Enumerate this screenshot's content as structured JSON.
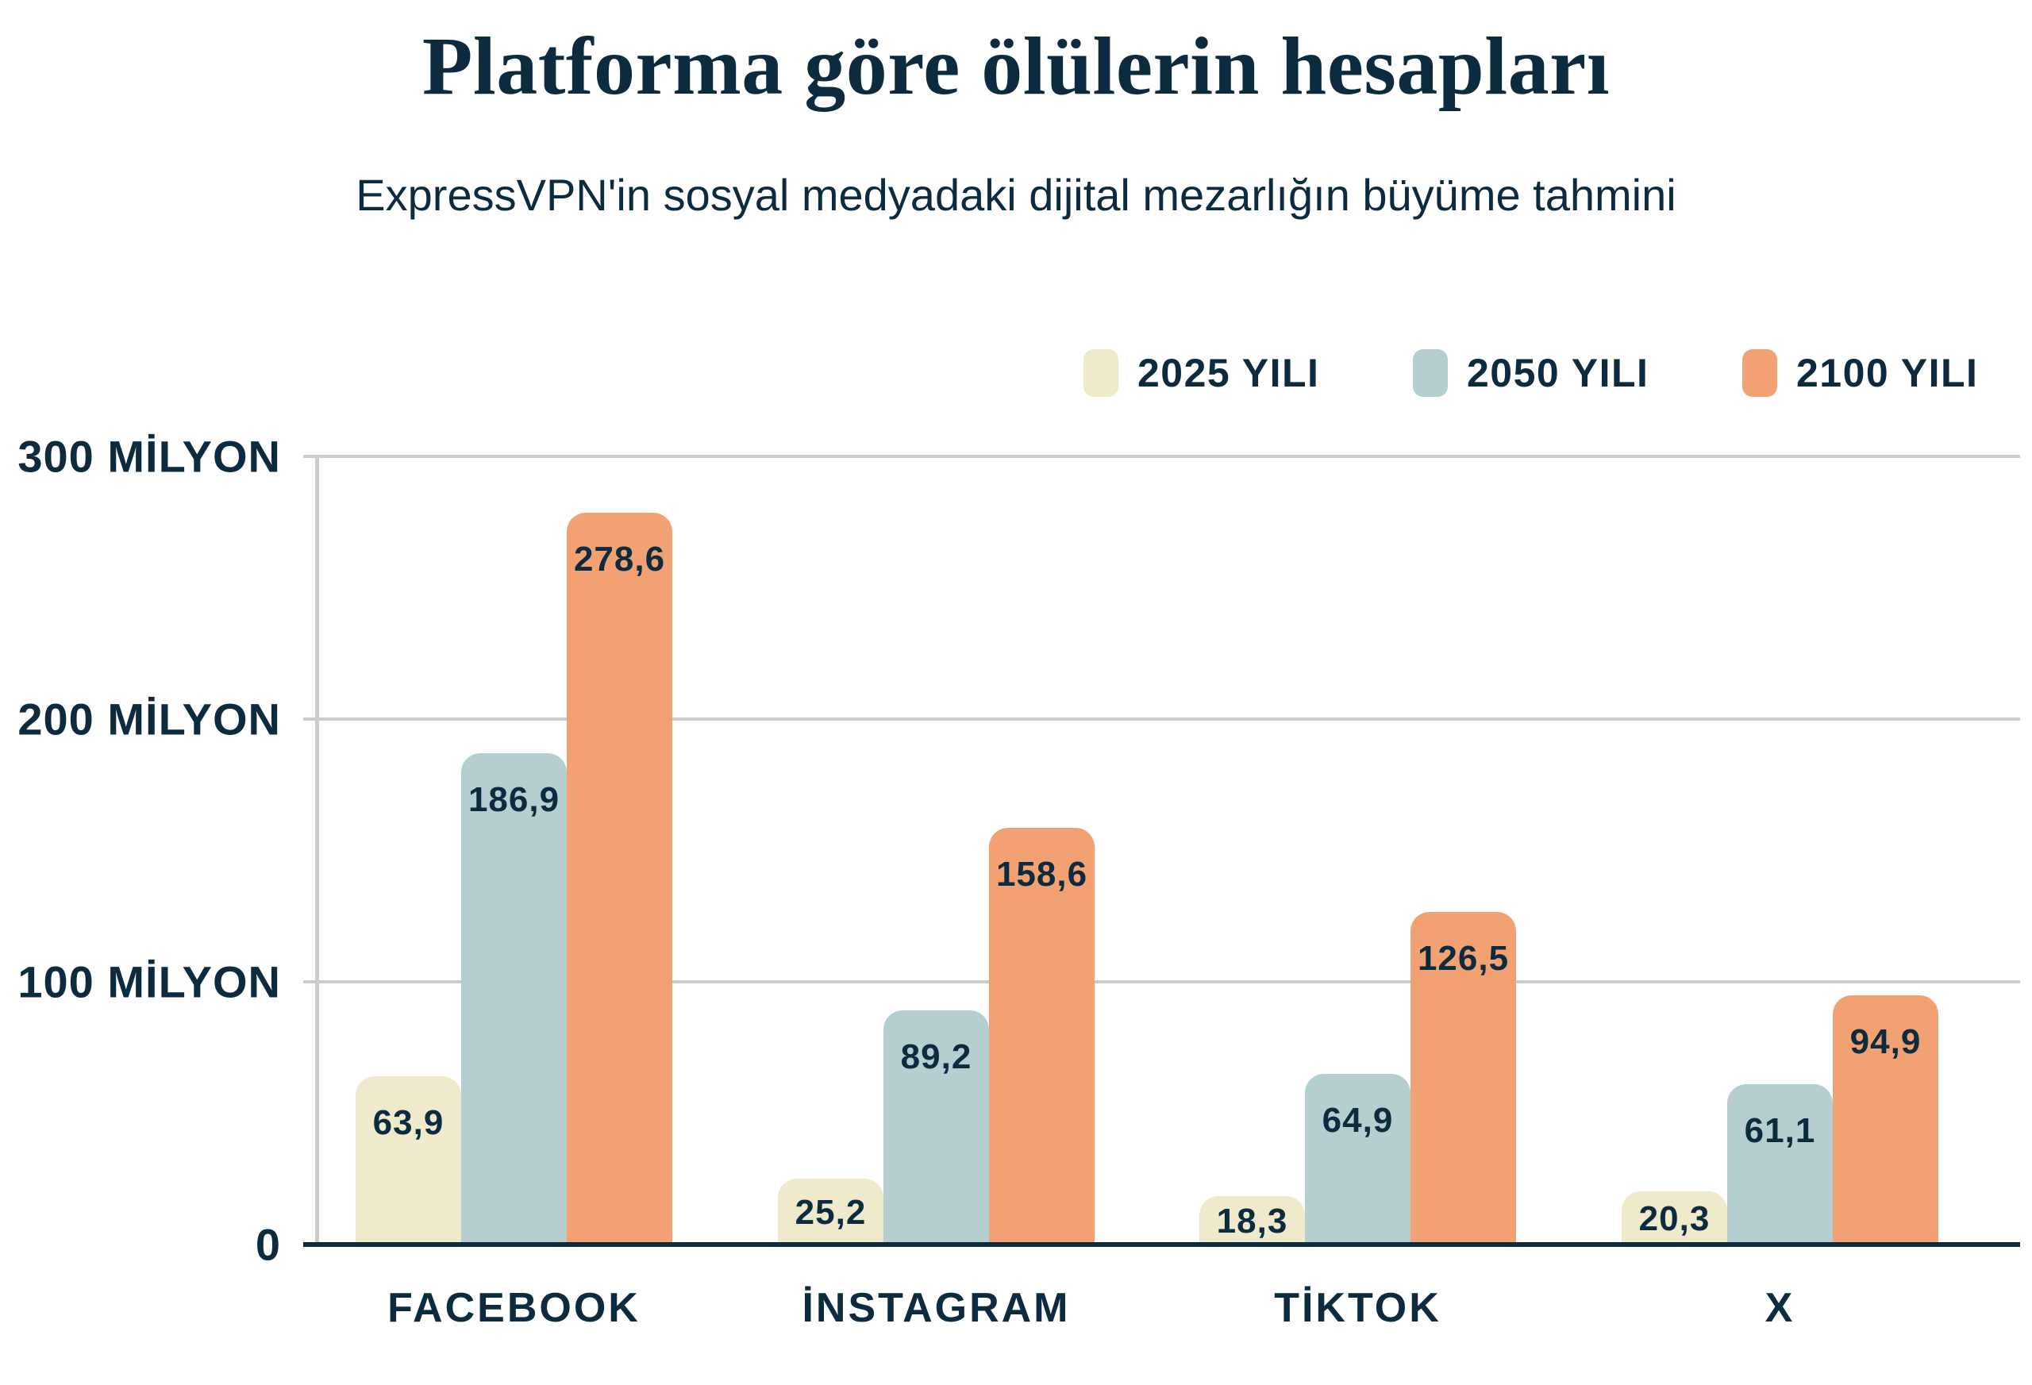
{
  "colors": {
    "text": "#0D2B3E",
    "grid": "#C9CDD1",
    "axis_baseline": "#0D2B3E",
    "background": "#FFFFFF",
    "series_2025": "#EFEACC",
    "series_2050": "#B5CFD1",
    "series_2100": "#F2A173"
  },
  "chart_data": {
    "type": "bar",
    "title": "Platforma göre ölülerin hesapları",
    "subtitle": "ExpressVPN'in sosyal medyadaki dijital mezarlığın büyüme tahmini",
    "categories": [
      "FACEBOOK",
      "İNSTAGRAM",
      "TİKTOK",
      "X"
    ],
    "series": [
      {
        "name": "2025 YILI",
        "color": "#EFEACC",
        "values": [
          63.9,
          25.2,
          18.3,
          20.3
        ],
        "labels": [
          "63,9",
          "25,2",
          "18,3",
          "20,3"
        ]
      },
      {
        "name": "2050 YILI",
        "color": "#B5CFD1",
        "values": [
          186.9,
          89.2,
          64.9,
          61.1
        ],
        "labels": [
          "186,9",
          "89,2",
          "64,9",
          "61,1"
        ]
      },
      {
        "name": "2100 YILI",
        "color": "#F2A173",
        "values": [
          278.6,
          158.6,
          126.5,
          94.9
        ],
        "labels": [
          "278,6",
          "158,6",
          "126,5",
          "94,9"
        ]
      }
    ],
    "y_ticks": [
      {
        "value": 0,
        "label": "0"
      },
      {
        "value": 100,
        "label": "100 MİLYON"
      },
      {
        "value": 200,
        "label": "200 MİLYON"
      },
      {
        "value": 300,
        "label": "300 MİLYON"
      }
    ],
    "ylim": [
      0,
      300
    ],
    "grid": "horizontal",
    "legend_position": "top-right"
  }
}
